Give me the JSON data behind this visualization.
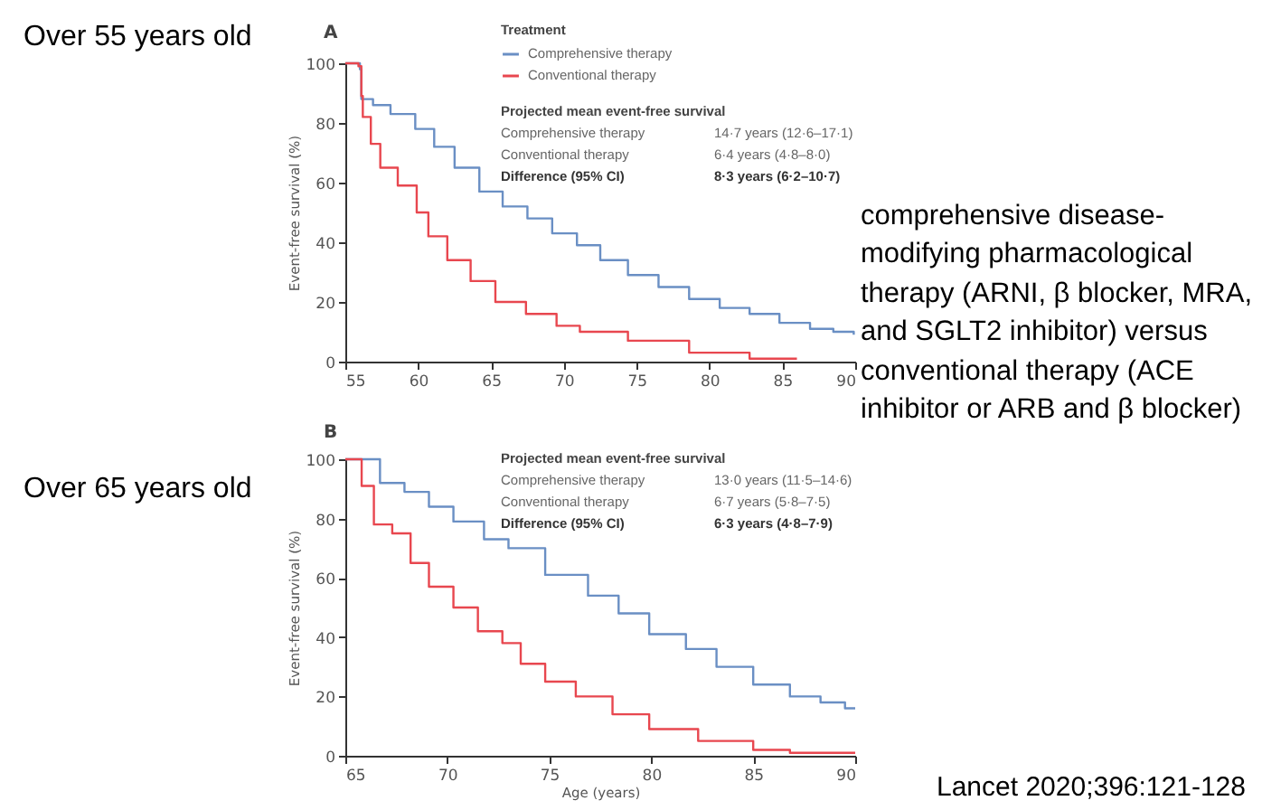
{
  "chart_data": [
    {
      "type": "step",
      "title": "A",
      "ylabel": "Event-free survival (%)",
      "legend_title": "Treatment",
      "legend": "top right",
      "xlim": [
        55,
        90
      ],
      "xticks": [
        55,
        60,
        65,
        70,
        75,
        80,
        85,
        90
      ],
      "ylim": [
        0,
        100
      ],
      "yticks": [
        0,
        20,
        40,
        60,
        80,
        100
      ],
      "grid": false,
      "annotations": [
        "Over 55 years old",
        "Projected mean event-free survival",
        "Comprehensive therapy",
        "14·7 years (12·6–17·1)",
        "Conventional therapy",
        "6·4 years (4·8–8·0)",
        "Difference (95% CI)",
        "8·3 years (6·2–10·7)",
        "comprehensive disease-modifying pharmacological therapy (ARNI, β blocker, MRA, and SGLT2 inhibitor) versus conventional therapy (ACE inhibitor or ARB and β blocker)"
      ],
      "series": [
        {
          "name": "Comprehensive therapy",
          "color": "#6a8fc4",
          "x": [
            55,
            56,
            56.1,
            56.9,
            58.1,
            59.8,
            61.1,
            62.5,
            64.2,
            65.8,
            67.5,
            69.2,
            70.9,
            72.5,
            74.4,
            76.5,
            78.6,
            80.7,
            82.75,
            84.8,
            86.9,
            88.5,
            89.9
          ],
          "values": [
            100,
            98,
            88,
            86,
            83,
            78,
            72,
            65,
            57,
            52,
            48,
            43,
            39,
            34,
            29,
            25,
            21,
            18,
            16,
            13,
            11,
            10,
            9
          ]
        },
        {
          "name": "Conventional therapy",
          "color": "#e8474f",
          "x": [
            55,
            55.9,
            56.1,
            56.2,
            56.75,
            57.4,
            58.6,
            59.9,
            60.7,
            62,
            63.6,
            65.3,
            67.4,
            69.5,
            71.1,
            74.4,
            78.6,
            82.75,
            86
          ],
          "values": [
            100,
            99,
            89,
            82,
            73,
            65,
            59,
            50,
            42,
            34,
            27,
            20,
            16,
            12,
            10,
            7,
            3,
            1,
            1
          ]
        }
      ]
    },
    {
      "type": "step",
      "title": "B",
      "xlabel": "Age (years)",
      "ylabel": "Event-free survival (%)",
      "xlim": [
        65,
        90
      ],
      "xticks": [
        65,
        70,
        75,
        80,
        85,
        90
      ],
      "ylim": [
        0,
        100
      ],
      "yticks": [
        0,
        20,
        40,
        60,
        80,
        100
      ],
      "grid": false,
      "annotations": [
        "Over 65 years old",
        "Projected mean event-free survival",
        "Comprehensive therapy",
        "13·0 years (11·5–14·6)",
        "Conventional therapy",
        "6·7 years (5·8–7·5)",
        "Difference (95% CI)",
        "6·3 years (4·8–7·9)",
        "Lancet 2020;396:121-128"
      ],
      "series": [
        {
          "color": "#6a8fc4",
          "x": [
            65,
            66.7,
            67.9,
            69.1,
            70.3,
            71.8,
            73,
            74.8,
            76.9,
            78.4,
            79.9,
            81.7,
            83.2,
            85,
            86.8,
            88.3,
            89.4,
            89.5,
            90
          ],
          "values": [
            100,
            92,
            89,
            84,
            79,
            73,
            70,
            61,
            54,
            48,
            41,
            36,
            30,
            24,
            20,
            18,
            18,
            16,
            16
          ]
        },
        {
          "color": "#e8474f",
          "x": [
            65,
            65.8,
            66.4,
            67.3,
            68.2,
            69.1,
            70.3,
            71.5,
            72.7,
            73.6,
            74.8,
            76.3,
            78.1,
            79.9,
            82.3,
            85,
            86.8,
            90
          ],
          "values": [
            100,
            91,
            78,
            75,
            65,
            57,
            50,
            42,
            38,
            31,
            25,
            20,
            14,
            9,
            5,
            2,
            1,
            1
          ]
        }
      ]
    }
  ]
}
